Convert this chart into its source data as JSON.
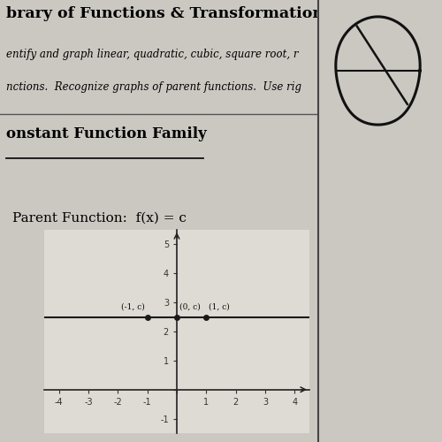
{
  "title_line1": "brary of Functions & Transformations of Func",
  "subtitle_line1": "entify and graph linear, quadratic, cubic, square root, r",
  "subtitle_line2": "nctions.  Recognize graphs of parent functions.  Use rig",
  "section_title": "onstant Function Family",
  "parent_func_label": "Parent Function:  f(x) = c",
  "bg_color": "#cbc8c2",
  "paper_color": "#e8e5df",
  "paper_color2": "#dedad4",
  "line_color": "#1a1a1a",
  "point_color": "#1a1a1a",
  "xlim": [
    -4.5,
    4.5
  ],
  "ylim": [
    -1.5,
    5.5
  ],
  "xticks": [
    -4,
    -3,
    -2,
    -1,
    0,
    1,
    2,
    3,
    4
  ],
  "yticks": [
    -1,
    0,
    1,
    2,
    3,
    4,
    5
  ],
  "constant_y": 2.5,
  "points_x": [
    -1,
    0,
    1
  ],
  "point_labels": [
    "(-1, c)",
    "(0, c)",
    "(1, c)"
  ],
  "divider_x": 0.72,
  "right_panel_color": "#b0aca6"
}
